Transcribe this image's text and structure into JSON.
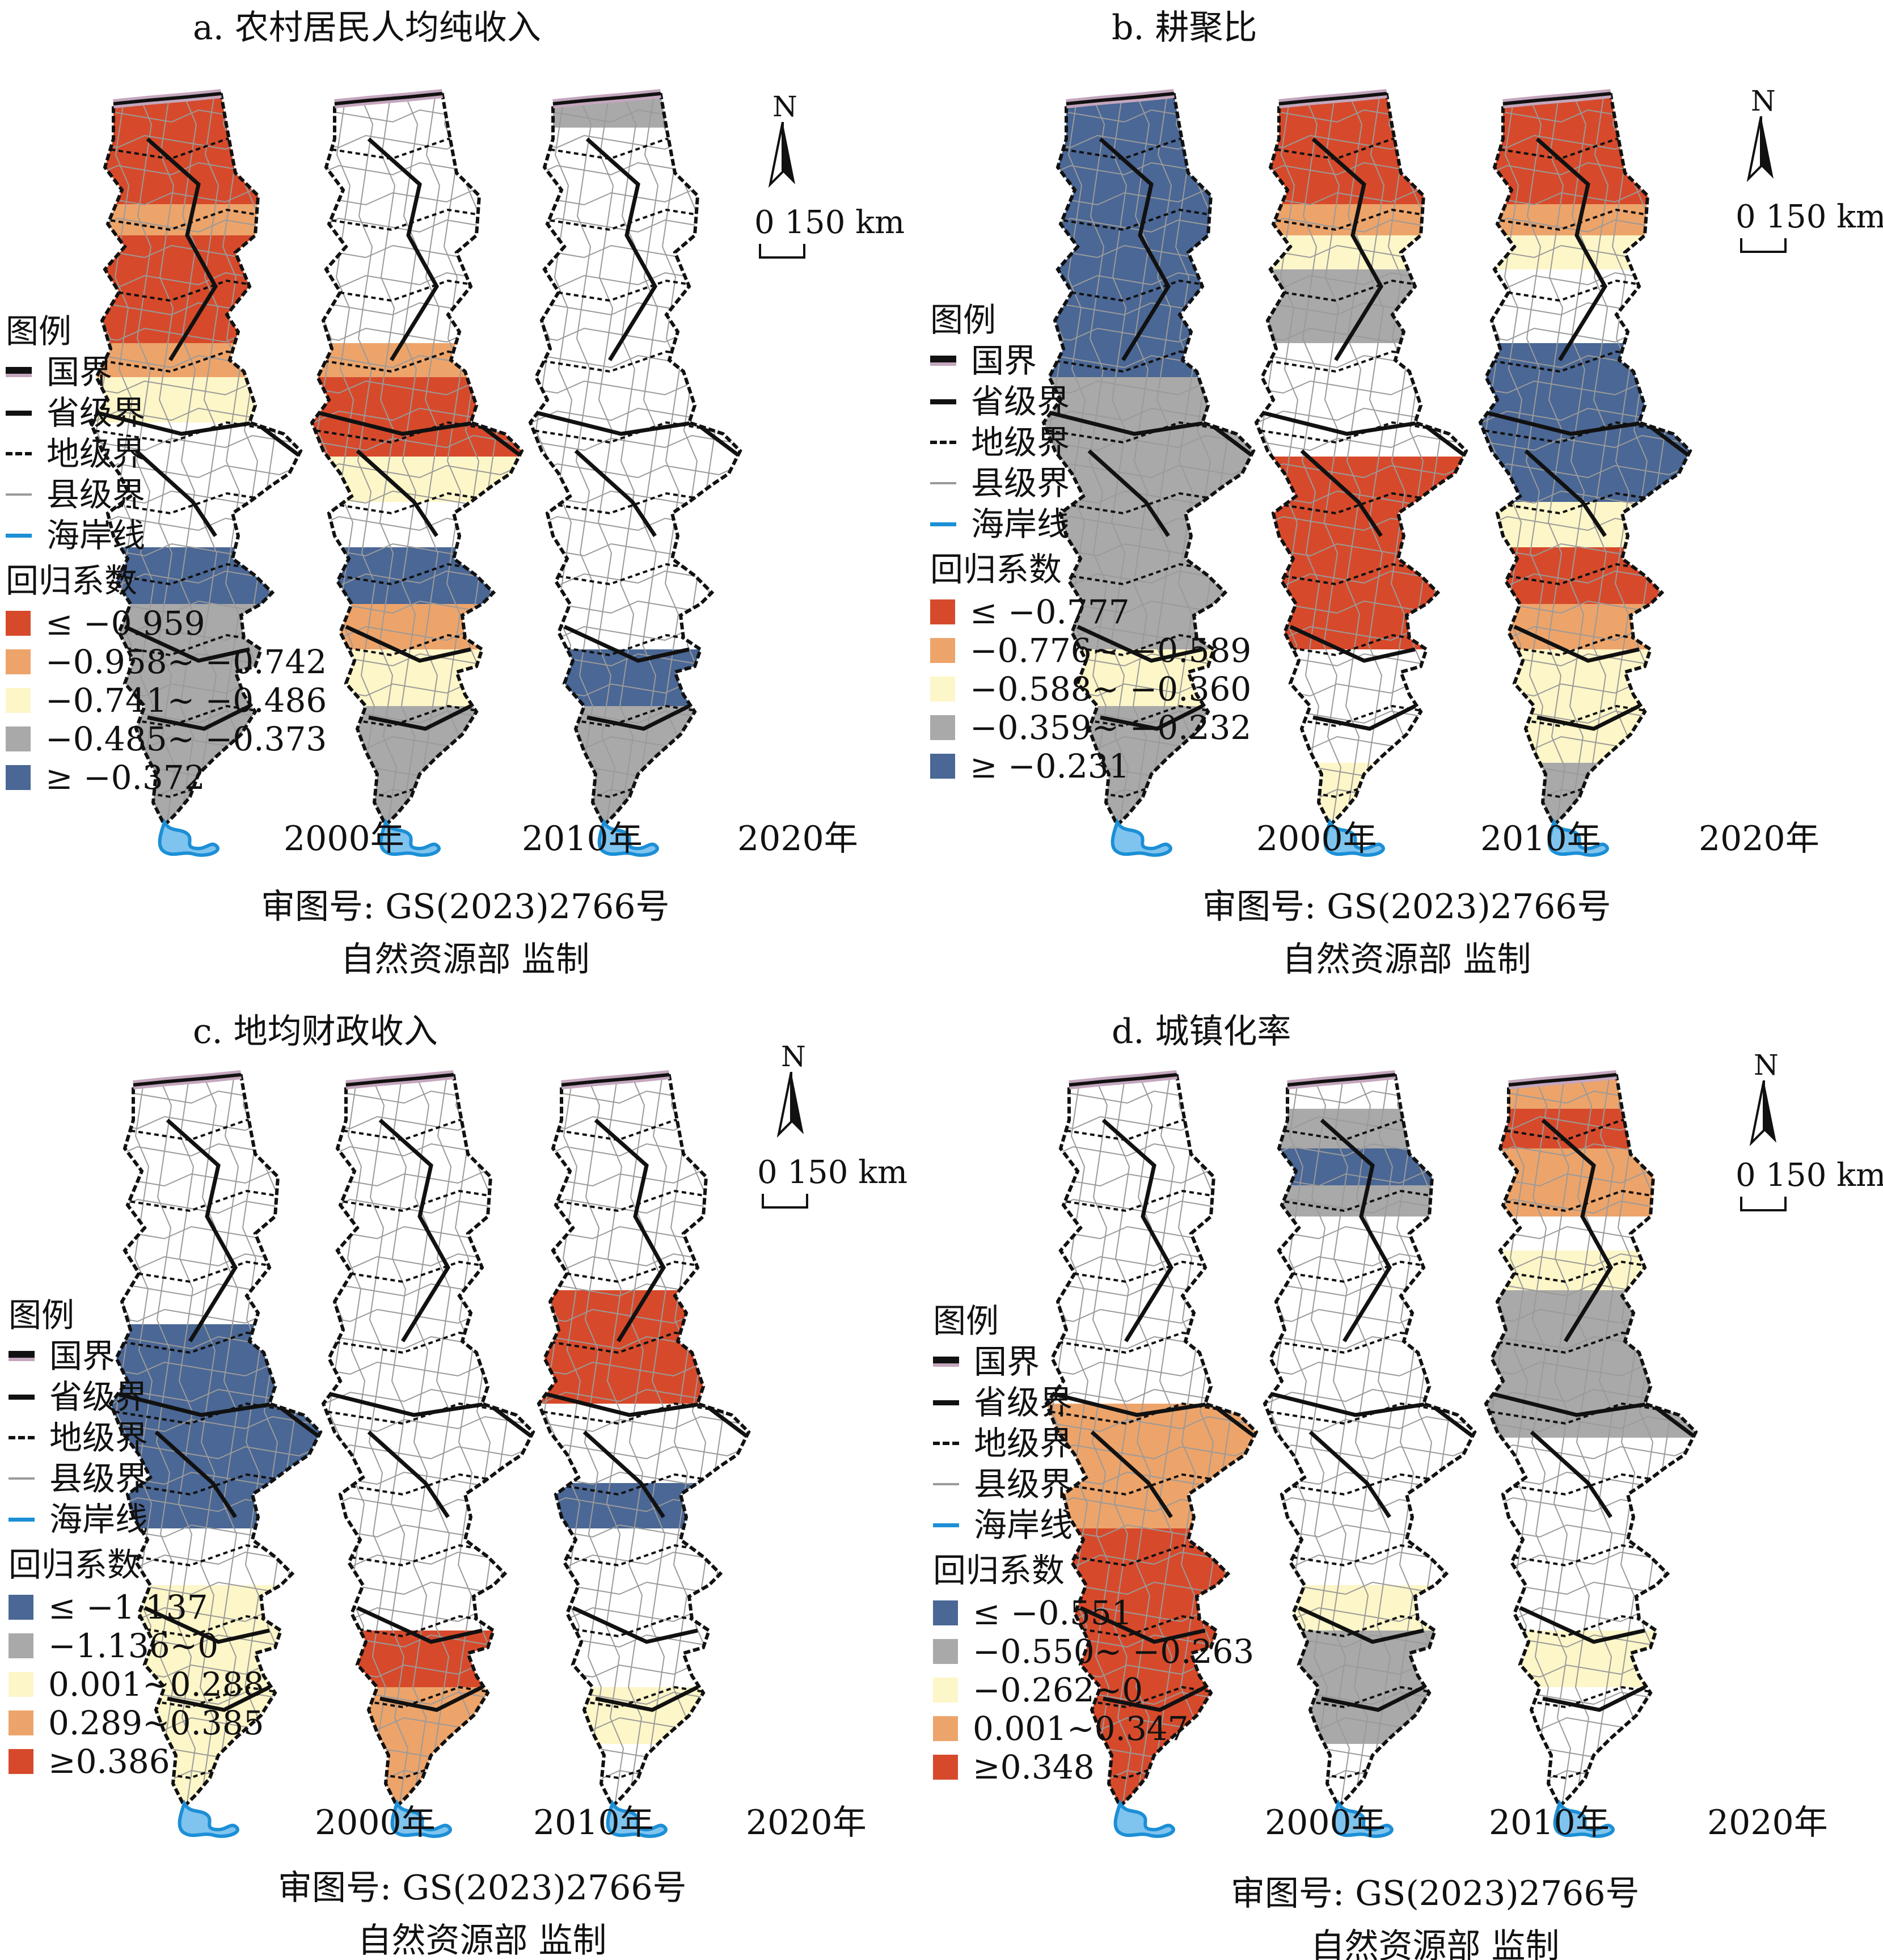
{
  "legend_common": {
    "title": "图例",
    "boundaries": [
      "国界",
      "省级界",
      "地级界",
      "县级界",
      "海岸线"
    ],
    "coef_title": "回归系数"
  },
  "colors": {
    "red": "#d64a2b",
    "orange": "#eda46a",
    "yellow": "#fdf6c8",
    "gray": "#a9a9a9",
    "blue": "#4a6795",
    "white": "#ffffff",
    "coast": "#1c8fd6",
    "intl_border": "#c4a6bd"
  },
  "years": [
    "2000年",
    "2010年",
    "2020年"
  ],
  "scale": {
    "label": "0 150 km",
    "north": "N"
  },
  "footer": {
    "line1": "审图号: GS(2023)2766号",
    "line2": "自然资源部 监制"
  },
  "panels": [
    {
      "id": "a",
      "title": "a. 农村居民人均纯收入",
      "classes": [
        {
          "label": "≤ −0.959",
          "color": "red"
        },
        {
          "label": "−0.958~ −0.742",
          "color": "orange"
        },
        {
          "label": "−0.741~ −0.486",
          "color": "yellow"
        },
        {
          "label": "−0.485~ −0.373",
          "color": "gray"
        },
        {
          "label": "≥ −0.372",
          "color": "blue"
        }
      ],
      "maps": [
        {
          "year": "2000年",
          "segments": [
            "red",
            "red",
            "red",
            "orange",
            "red",
            "red",
            "red",
            "orange",
            "yellow",
            "white",
            "white",
            "white",
            "blue",
            "gray",
            "gray",
            "gray",
            "gray"
          ]
        },
        {
          "year": "2010年",
          "segments": [
            "white",
            "white",
            "white",
            "white",
            "white",
            "white",
            "white",
            "orange",
            "red",
            "red",
            "yellow",
            "white",
            "blue",
            "orange",
            "yellow",
            "gray",
            "gray"
          ]
        },
        {
          "year": "2020年",
          "segments": [
            "gray",
            "white",
            "white",
            "white",
            "white",
            "white",
            "white",
            "white",
            "white",
            "white",
            "white",
            "white",
            "white",
            "white",
            "blue",
            "gray",
            "gray"
          ]
        }
      ]
    },
    {
      "id": "b",
      "title": "b. 耕聚比",
      "classes": [
        {
          "label": "≤ −0.777",
          "color": "red"
        },
        {
          "label": "−0.776~ −0.589",
          "color": "orange"
        },
        {
          "label": "−0.588~ −0.360",
          "color": "yellow"
        },
        {
          "label": "−0.359~ −0.232",
          "color": "gray"
        },
        {
          "label": "≥ −0.231",
          "color": "blue"
        }
      ],
      "maps": [
        {
          "year": "2000年",
          "segments": [
            "blue",
            "blue",
            "blue",
            "blue",
            "blue",
            "blue",
            "blue",
            "blue",
            "gray",
            "gray",
            "gray",
            "gray",
            "gray",
            "gray",
            "yellow",
            "gray",
            "gray"
          ]
        },
        {
          "year": "2010年",
          "segments": [
            "red",
            "red",
            "red",
            "orange",
            "yellow",
            "gray",
            "gray",
            "white",
            "white",
            "white",
            "red",
            "red",
            "red",
            "red",
            "white",
            "white",
            "yellow"
          ]
        },
        {
          "year": "2020年",
          "segments": [
            "red",
            "red",
            "red",
            "orange",
            "yellow",
            "white",
            "white",
            "blue",
            "blue",
            "blue",
            "blue",
            "yellow",
            "red",
            "orange",
            "yellow",
            "yellow",
            "gray"
          ]
        }
      ]
    },
    {
      "id": "c",
      "title": "c. 地均财政收入",
      "classes": [
        {
          "label": "≤ −1.137",
          "color": "blue"
        },
        {
          "label": "−1.136~0",
          "color": "gray"
        },
        {
          "label": "0.001~0.288",
          "color": "yellow"
        },
        {
          "label": "0.289~0.385",
          "color": "orange"
        },
        {
          "label": "≥0.386",
          "color": "red"
        }
      ],
      "maps": [
        {
          "year": "2000年",
          "segments": [
            "white",
            "white",
            "white",
            "white",
            "white",
            "white",
            "white",
            "blue",
            "blue",
            "blue",
            "blue",
            "blue",
            "white",
            "yellow",
            "yellow",
            "yellow",
            "yellow"
          ]
        },
        {
          "year": "2010年",
          "segments": [
            "white",
            "white",
            "white",
            "white",
            "white",
            "white",
            "white",
            "white",
            "white",
            "white",
            "white",
            "white",
            "white",
            "white",
            "red",
            "orange",
            "orange"
          ]
        },
        {
          "year": "2020年",
          "segments": [
            "white",
            "white",
            "white",
            "white",
            "white",
            "white",
            "red",
            "red",
            "red",
            "white",
            "white",
            "blue",
            "white",
            "white",
            "white",
            "yellow",
            "white"
          ]
        }
      ]
    },
    {
      "id": "d",
      "title": "d. 城镇化率",
      "classes": [
        {
          "label": "≤ −0.551",
          "color": "blue"
        },
        {
          "label": "−0.550~ −0.263",
          "color": "gray"
        },
        {
          "label": "−0.262~0",
          "color": "yellow"
        },
        {
          "label": "0.001~0.347",
          "color": "orange"
        },
        {
          "label": "≥0.348",
          "color": "red"
        }
      ],
      "maps": [
        {
          "year": "2000年",
          "segments": [
            "white",
            "white",
            "white",
            "white",
            "white",
            "white",
            "white",
            "white",
            "white",
            "orange",
            "orange",
            "orange",
            "red",
            "red",
            "red",
            "red",
            "red"
          ]
        },
        {
          "year": "2010年",
          "segments": [
            "white",
            "gray",
            "blue",
            "gray",
            "white",
            "white",
            "white",
            "white",
            "white",
            "white",
            "white",
            "white",
            "white",
            "yellow",
            "gray",
            "gray",
            "white"
          ]
        },
        {
          "year": "2020年",
          "segments": [
            "orange",
            "red",
            "orange",
            "orange",
            "white",
            "yellow",
            "gray",
            "gray",
            "gray",
            "gray",
            "white",
            "white",
            "white",
            "white",
            "yellow",
            "white",
            "white"
          ]
        }
      ]
    }
  ]
}
